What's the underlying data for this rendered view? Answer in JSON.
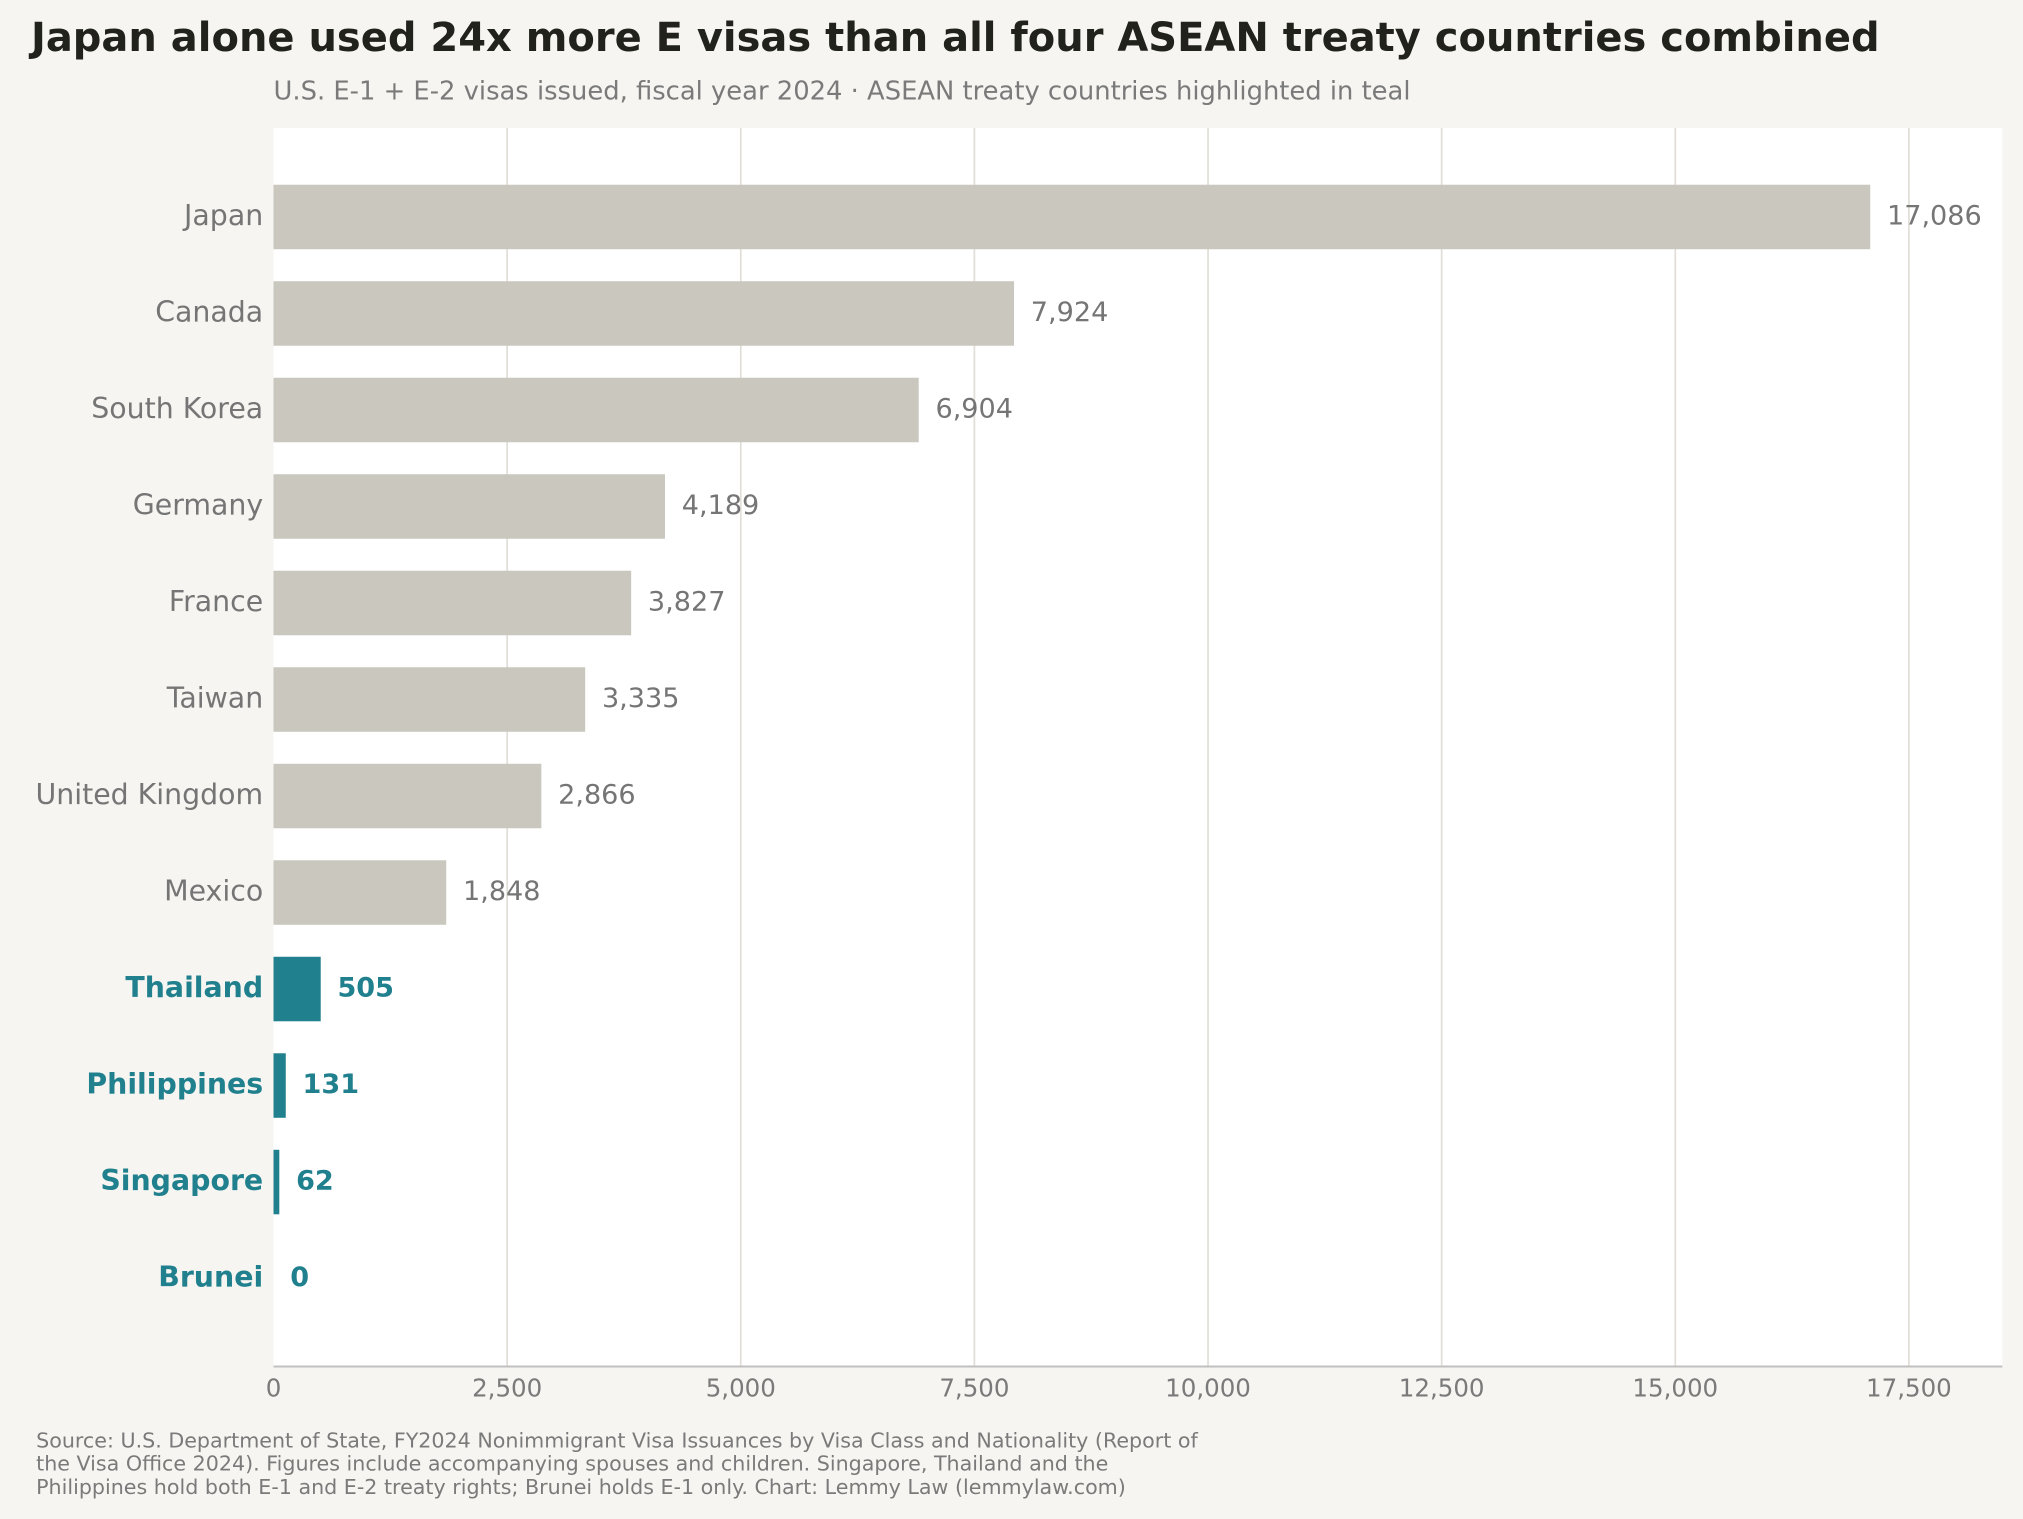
{
  "chart_data": {
    "type": "barh",
    "title": "Japan alone used 24x more E visas than all four ASEAN treaty countries combined",
    "subtitle": "U.S. E-1 + E-2 visas issued, fiscal year 2024 · ASEAN treaty countries highlighted in teal",
    "categories": [
      "Japan",
      "Canada",
      "South Korea",
      "Germany",
      "France",
      "Taiwan",
      "United Kingdom",
      "Mexico",
      "Thailand",
      "Philippines",
      "Singapore",
      "Brunei"
    ],
    "values": [
      17086,
      7924,
      6904,
      4189,
      3827,
      3335,
      2866,
      1848,
      505,
      131,
      62,
      0
    ],
    "value_labels": [
      "17,086",
      "7,924",
      "6,904",
      "4,189",
      "3,827",
      "3,335",
      "2,866",
      "1,848",
      "505",
      "131",
      "62",
      "0"
    ],
    "colors": [
      "#c9c7be",
      "#c9c7be",
      "#c9c7be",
      "#c9c7be",
      "#c9c7be",
      "#c9c7be",
      "#c9c7be",
      "#c9c7be",
      "#21808d",
      "#21808d",
      "#21808d",
      "#21808d"
    ],
    "highlight_color": "#21808d",
    "xlim": [
      0,
      18500
    ],
    "xticks": [
      0,
      {
        "value": 2500,
        "label": "2,500"
      },
      {
        "value": 5000,
        "label": "5,000"
      },
      {
        "value": 7500,
        "label": "7,500"
      },
      {
        "value": 10000,
        "label": "10,000"
      },
      {
        "value": 12500,
        "label": "12,500"
      },
      {
        "value": 15000,
        "label": "15,000"
      },
      {
        "value": 17500,
        "label": "17,500"
      }
    ],
    "grid": true,
    "source": [
      "Source: U.S. Department of State, FY2024 Nonimmigrant Visa Issuances by Visa Class and Nationality (Report of",
      "the Visa Office 2024). Figures include accompanying spouses and children. Singapore, Thailand and the",
      "Philippines hold both E-1 and E-2 treaty rights; Brunei holds E-1 only. Chart: Lemmy Law (lemmylaw.com)"
    ]
  }
}
